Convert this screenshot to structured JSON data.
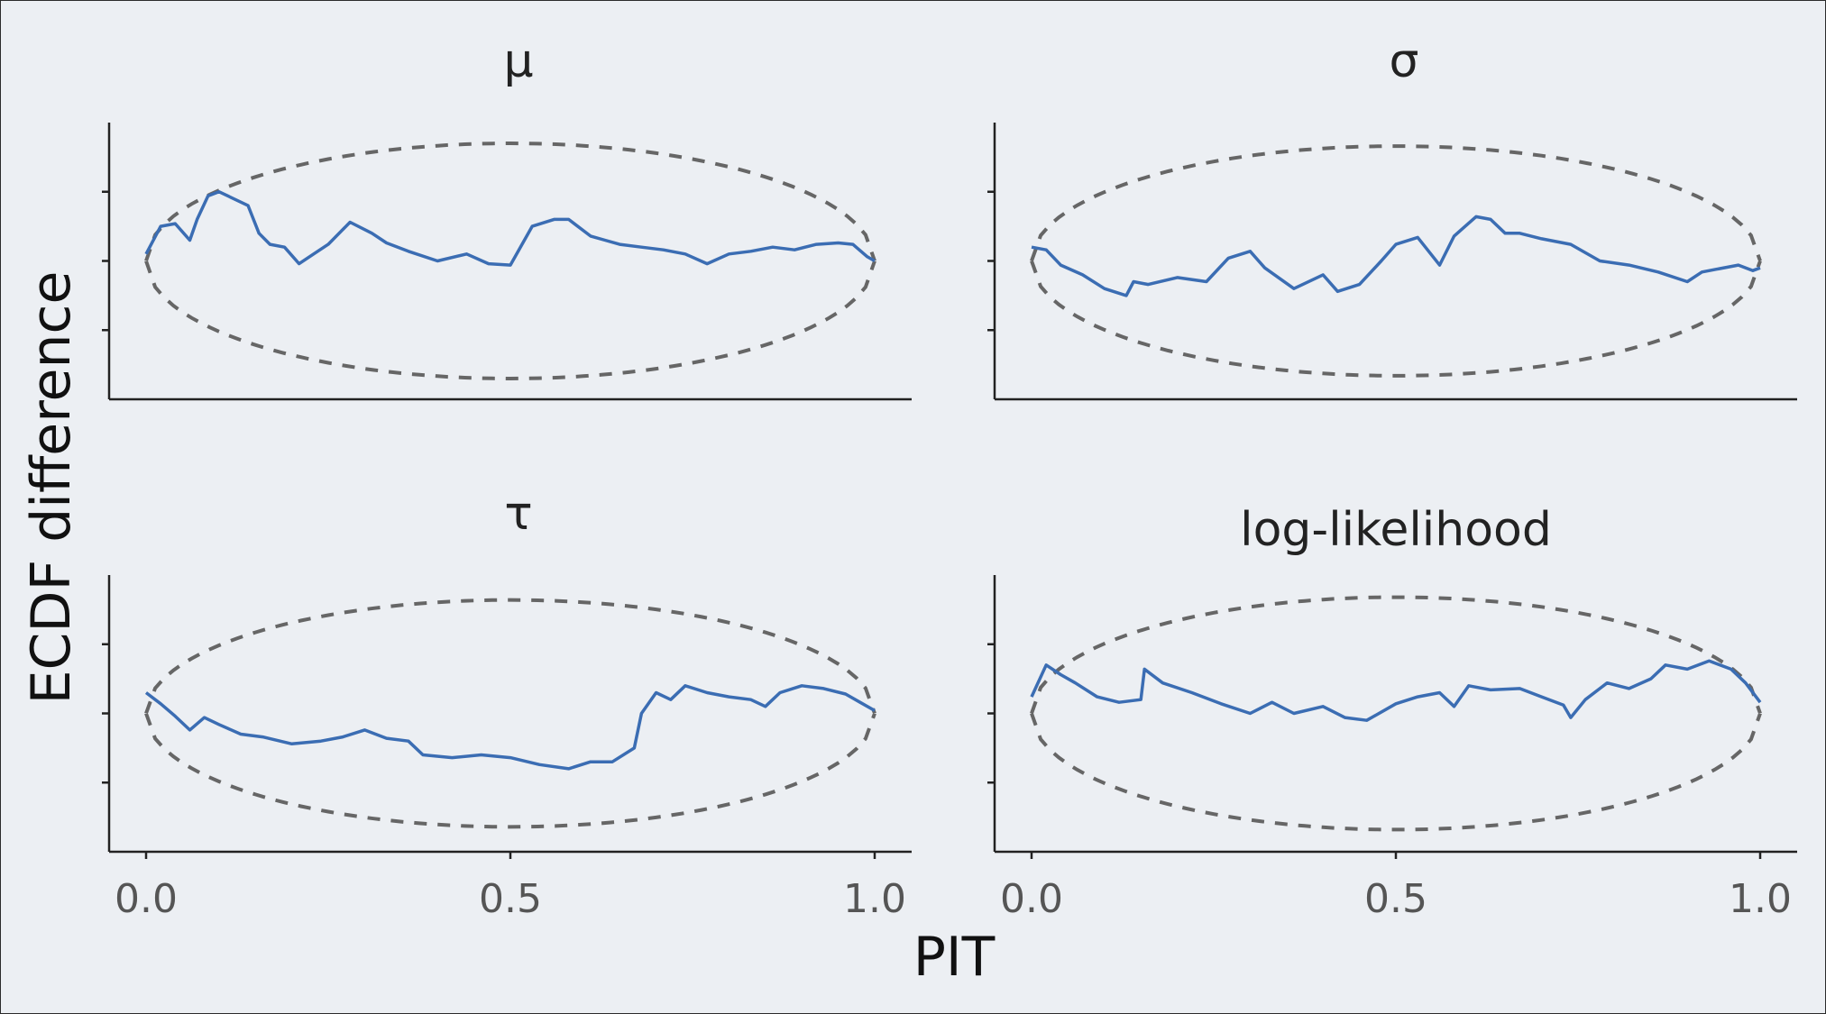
{
  "chart_data": {
    "type": "line",
    "xlabel": "PIT",
    "ylabel": "ECDF difference",
    "xlim": [
      0,
      1
    ],
    "ylim": [
      -0.1,
      0.1
    ],
    "x_ticks": [
      "0.0",
      "0.5",
      "1.0"
    ],
    "y_ticks": [
      -0.05,
      0.0,
      0.05
    ],
    "y_tick_labels_shown": false,
    "grid": false,
    "legend": "none",
    "colors": {
      "ecdf": "#3b6db3",
      "envelope": "#666666"
    },
    "panels": [
      {
        "title": "μ",
        "series": [
          {
            "x": [
              0,
              0.02,
              0.04,
              0.06,
              0.07,
              0.085,
              0.1,
              0.12,
              0.14,
              0.155,
              0.17,
              0.19,
              0.21,
              0.23,
              0.25,
              0.28,
              0.31,
              0.33,
              0.36,
              0.4,
              0.44,
              0.47,
              0.5,
              0.53,
              0.56,
              0.58,
              0.61,
              0.63,
              0.65,
              0.68,
              0.71,
              0.74,
              0.77,
              0.8,
              0.83,
              0.86,
              0.89,
              0.92,
              0.95,
              0.97,
              0.99,
              1.0
            ],
            "y": [
              0.005,
              0.025,
              0.027,
              0.015,
              0.03,
              0.047,
              0.05,
              0.045,
              0.04,
              0.02,
              0.012,
              0.01,
              -0.002,
              0.005,
              0.012,
              0.028,
              0.02,
              0.013,
              0.007,
              0.0,
              0.005,
              -0.002,
              -0.003,
              0.025,
              0.03,
              0.03,
              0.018,
              0.015,
              0.012,
              0.01,
              0.008,
              0.005,
              -0.002,
              0.005,
              0.007,
              0.01,
              0.008,
              0.012,
              0.013,
              0.012,
              0.003,
              0.0
            ]
          }
        ],
        "envelope": {
          "peak": 0.085
        }
      },
      {
        "title": "σ",
        "series": [
          {
            "x": [
              0,
              0.02,
              0.04,
              0.07,
              0.1,
              0.13,
              0.14,
              0.16,
              0.2,
              0.24,
              0.27,
              0.3,
              0.32,
              0.36,
              0.4,
              0.42,
              0.45,
              0.48,
              0.5,
              0.53,
              0.56,
              0.58,
              0.61,
              0.63,
              0.65,
              0.67,
              0.7,
              0.74,
              0.78,
              0.82,
              0.86,
              0.9,
              0.92,
              0.94,
              0.97,
              0.99,
              1.0
            ],
            "y": [
              0.01,
              0.008,
              -0.003,
              -0.01,
              -0.02,
              -0.025,
              -0.015,
              -0.017,
              -0.012,
              -0.015,
              0.002,
              0.007,
              -0.005,
              -0.02,
              -0.01,
              -0.022,
              -0.017,
              0.0,
              0.012,
              0.017,
              -0.003,
              0.018,
              0.032,
              0.03,
              0.02,
              0.02,
              0.016,
              0.012,
              0.0,
              -0.003,
              -0.008,
              -0.015,
              -0.008,
              -0.006,
              -0.003,
              -0.007,
              -0.005
            ]
          }
        ],
        "envelope": {
          "peak": 0.083
        }
      },
      {
        "title": "τ",
        "series": [
          {
            "x": [
              0,
              0.02,
              0.04,
              0.06,
              0.08,
              0.1,
              0.13,
              0.16,
              0.2,
              0.24,
              0.27,
              0.3,
              0.33,
              0.36,
              0.38,
              0.42,
              0.46,
              0.5,
              0.54,
              0.58,
              0.61,
              0.64,
              0.67,
              0.68,
              0.7,
              0.72,
              0.74,
              0.77,
              0.8,
              0.83,
              0.85,
              0.87,
              0.9,
              0.93,
              0.96,
              0.98,
              1.0
            ],
            "y": [
              0.015,
              0.007,
              -0.002,
              -0.012,
              -0.003,
              -0.008,
              -0.015,
              -0.017,
              -0.022,
              -0.02,
              -0.017,
              -0.012,
              -0.018,
              -0.02,
              -0.03,
              -0.032,
              -0.03,
              -0.032,
              -0.037,
              -0.04,
              -0.035,
              -0.035,
              -0.025,
              0.0,
              0.015,
              0.01,
              0.02,
              0.015,
              0.012,
              0.01,
              0.005,
              0.015,
              0.02,
              0.018,
              0.014,
              0.008,
              0.002
            ]
          }
        ],
        "envelope": {
          "peak": 0.082
        }
      },
      {
        "title": "log-likelihood",
        "series": [
          {
            "x": [
              0,
              0.02,
              0.04,
              0.06,
              0.09,
              0.12,
              0.15,
              0.155,
              0.18,
              0.22,
              0.26,
              0.3,
              0.33,
              0.36,
              0.4,
              0.43,
              0.46,
              0.5,
              0.53,
              0.56,
              0.58,
              0.6,
              0.63,
              0.67,
              0.7,
              0.73,
              0.74,
              0.76,
              0.79,
              0.82,
              0.85,
              0.87,
              0.9,
              0.93,
              0.96,
              0.98,
              1.0
            ],
            "y": [
              0.012,
              0.035,
              0.028,
              0.022,
              0.012,
              0.008,
              0.01,
              0.032,
              0.022,
              0.015,
              0.007,
              0.0,
              0.008,
              0.0,
              0.005,
              -0.003,
              -0.005,
              0.007,
              0.012,
              0.015,
              0.005,
              0.02,
              0.017,
              0.018,
              0.012,
              0.006,
              -0.003,
              0.01,
              0.022,
              0.018,
              0.025,
              0.035,
              0.032,
              0.038,
              0.032,
              0.022,
              0.008
            ]
          }
        ],
        "envelope": {
          "peak": 0.084
        }
      }
    ]
  }
}
